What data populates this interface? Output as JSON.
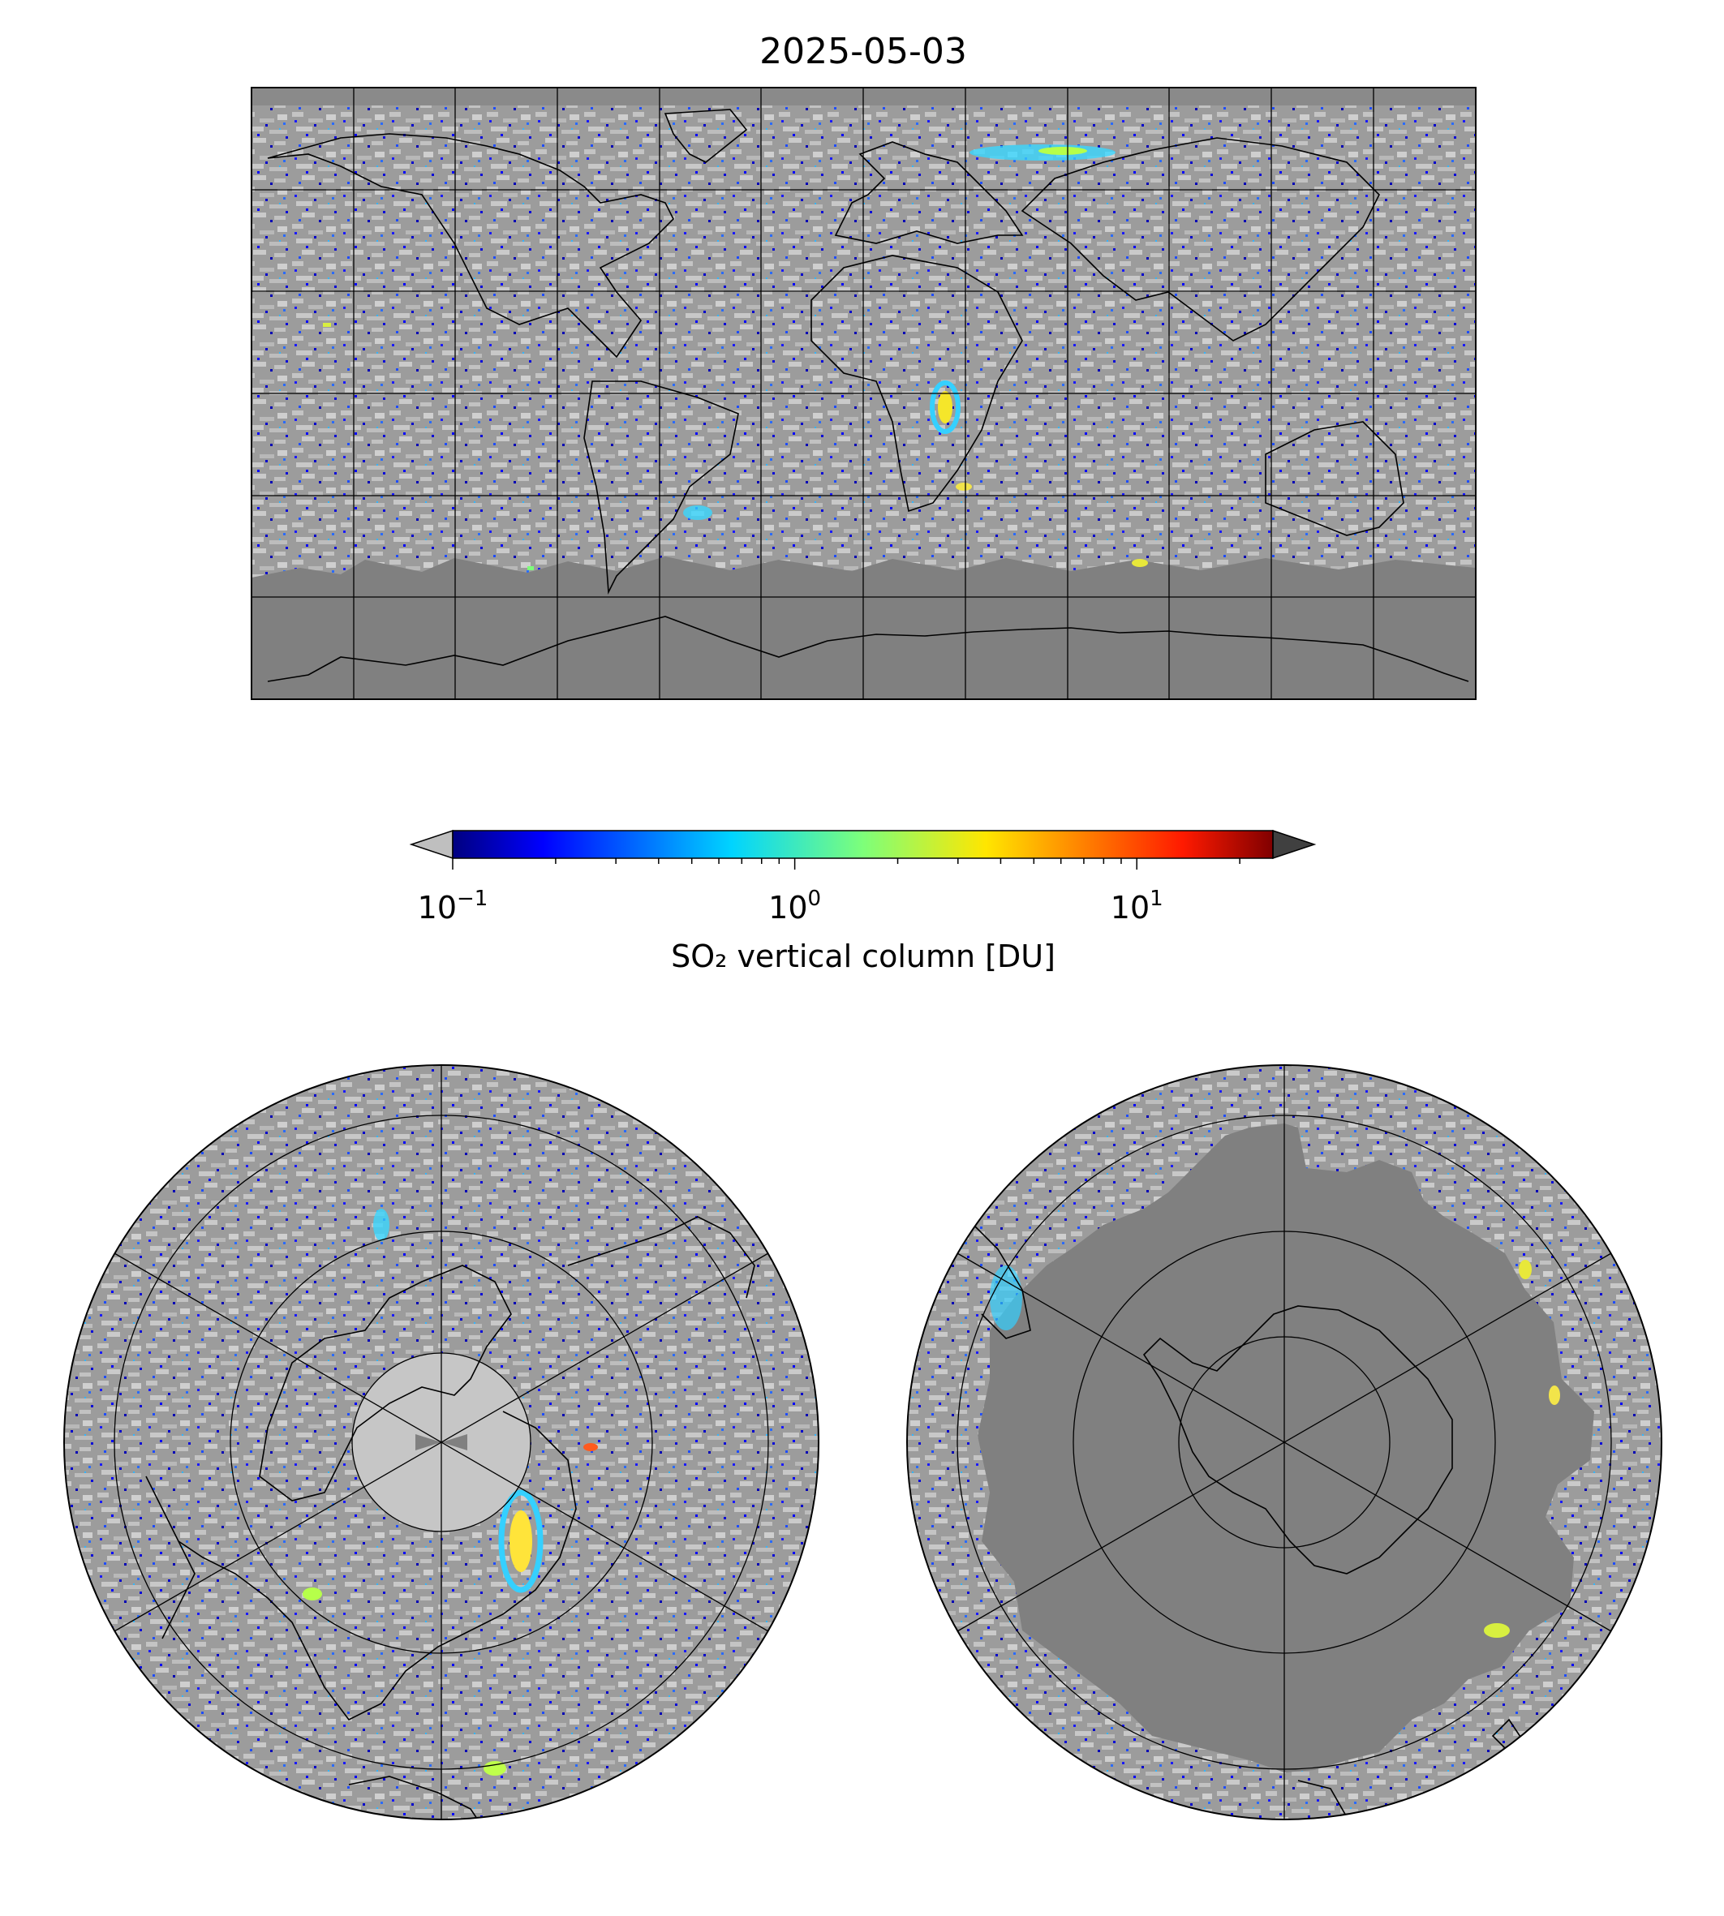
{
  "figure": {
    "title": "2025-05-03",
    "colorbar": {
      "label": "SO₂ vertical column [DU]",
      "scale": "log",
      "range": [
        0.1,
        25
      ],
      "extend": "both",
      "ticks": [
        {
          "base": "10",
          "exp": "−1",
          "value": 0.1
        },
        {
          "base": "10",
          "exp": "0",
          "value": 1
        },
        {
          "base": "10",
          "exp": "1",
          "value": 10
        }
      ],
      "colormap": "jet",
      "under_color": "#bfbfbf",
      "over_color": "#404040"
    },
    "colors": {
      "missing_data": "#808080",
      "low_value": "#c0c0c0",
      "coastline": "#000000",
      "grid": "#000000"
    },
    "panels": [
      {
        "name": "global-map",
        "projection": "equirectangular",
        "gridlines_lon_deg": 30,
        "gridlines_lat_deg": 30
      },
      {
        "name": "north-polar-map",
        "projection": "north-polar",
        "meridian_spokes": 6
      },
      {
        "name": "south-polar-map",
        "projection": "south-polar",
        "meridian_spokes": 6
      }
    ]
  }
}
